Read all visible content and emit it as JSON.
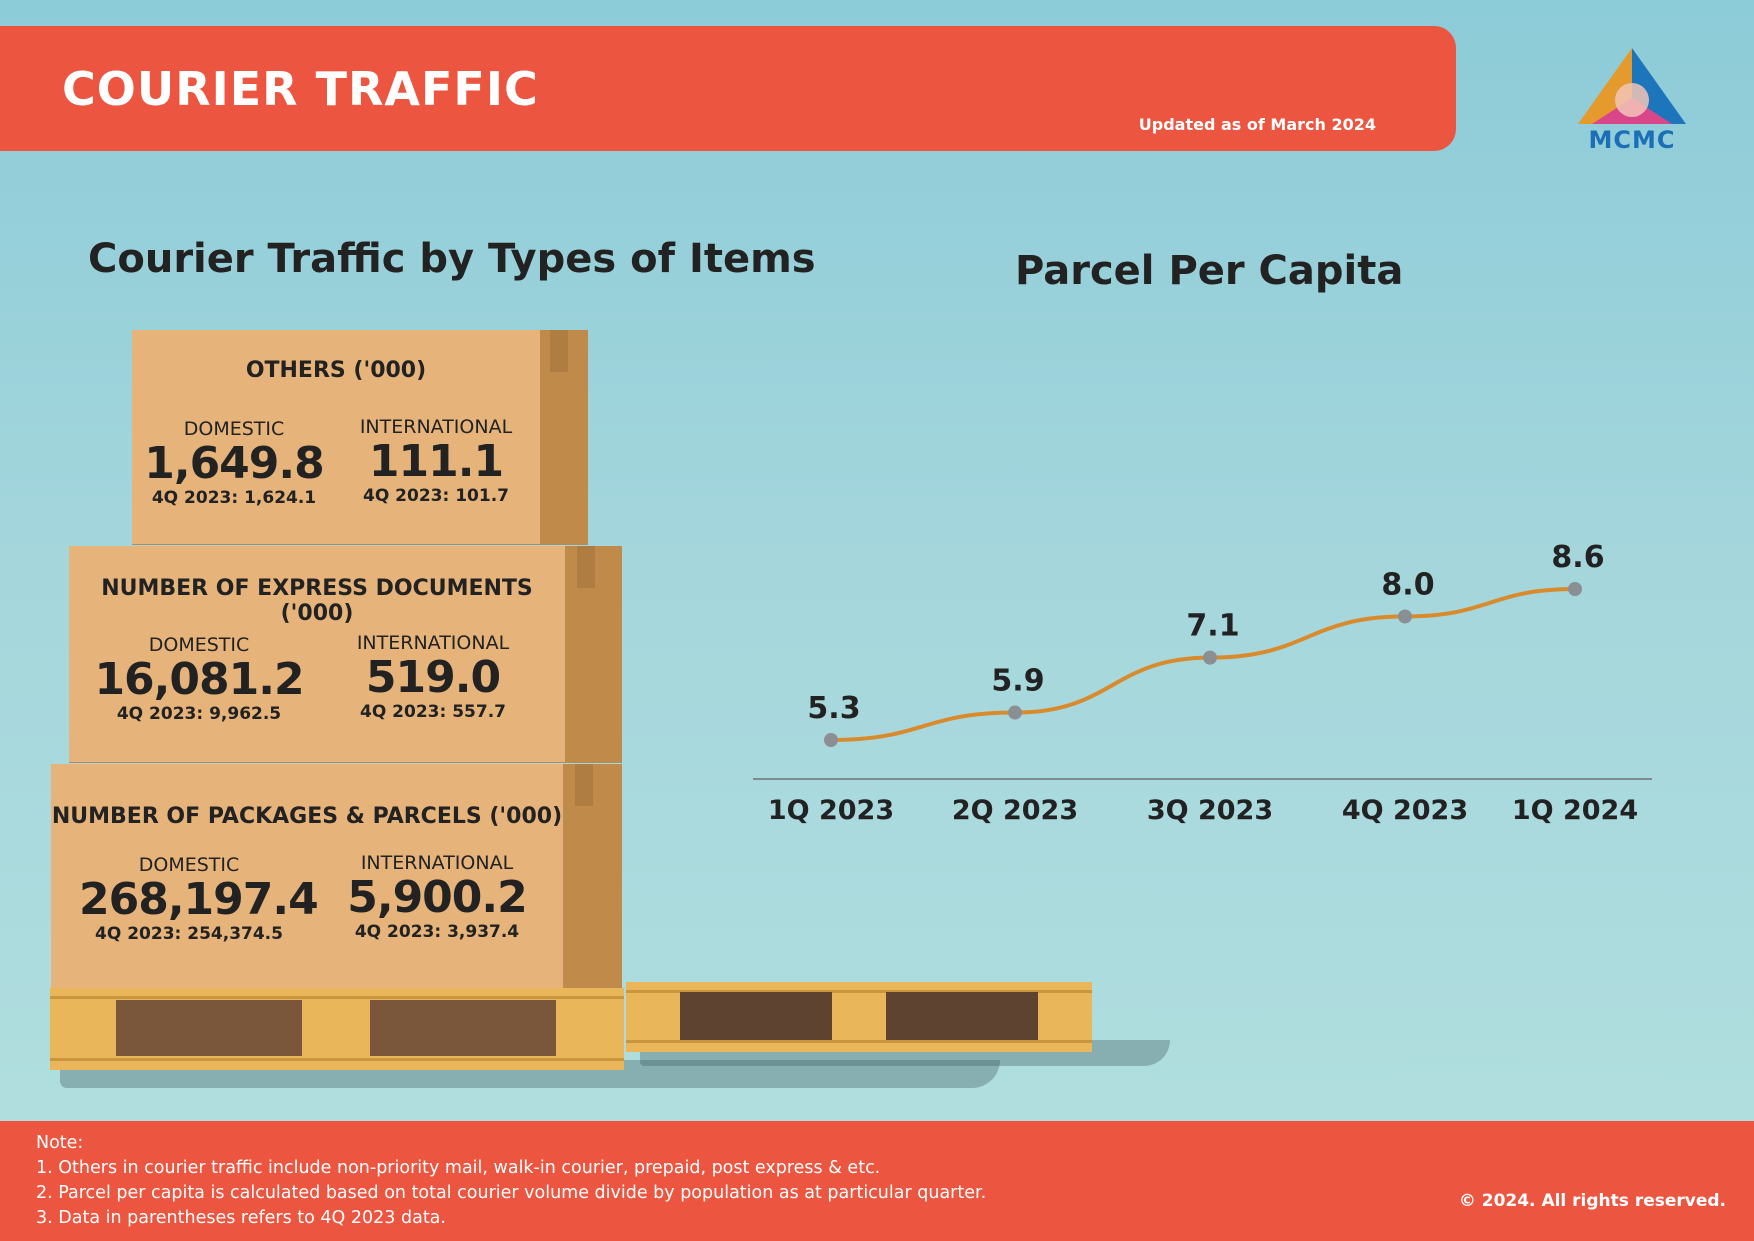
{
  "header": {
    "title": "COURIER TRAFFIC",
    "updated": "Updated as of March 2024",
    "logo_text": "MCMC"
  },
  "left_section": {
    "title": "Courier Traffic by Types of Items",
    "boxes": [
      {
        "title": "OTHERS ('000)",
        "domestic": {
          "label": "DOMESTIC",
          "value": "1,649.8",
          "prev": "4Q 2023: 1,624.1"
        },
        "international": {
          "label": "INTERNATIONAL",
          "value": "111.1",
          "prev": "4Q 2023: 101.7"
        }
      },
      {
        "title": "NUMBER OF EXPRESS DOCUMENTS ('000)",
        "domestic": {
          "label": "DOMESTIC",
          "value": "16,081.2",
          "prev": "4Q 2023: 9,962.5"
        },
        "international": {
          "label": "INTERNATIONAL",
          "value": "519.0",
          "prev": "4Q 2023: 557.7"
        }
      },
      {
        "title": "NUMBER OF PACKAGES & PARCELS ('000)",
        "domestic": {
          "label": "DOMESTIC",
          "value": "268,197.4",
          "prev": "4Q 2023: 254,374.5"
        },
        "international": {
          "label": "INTERNATIONAL",
          "value": "5,900.2",
          "prev": "4Q 2023: 3,937.4"
        }
      }
    ]
  },
  "chart_data": {
    "type": "line",
    "title": "Parcel Per Capita",
    "categories": [
      "1Q 2023",
      "2Q 2023",
      "3Q 2023",
      "4Q 2023",
      "1Q 2024"
    ],
    "values": [
      5.3,
      5.9,
      7.1,
      8.0,
      8.6
    ],
    "data_labels": [
      "5.3",
      "5.9",
      "7.1",
      "8.0",
      "8.6"
    ],
    "xlabel": "",
    "ylabel": "",
    "ylim": [
      0,
      10
    ],
    "grid": false,
    "line_color": "#d98a2b",
    "marker_color": "#8a8f94"
  },
  "footer": {
    "notes": [
      "Note:",
      "1.  Others in courier traffic include non-priority mail, walk-in courier, prepaid, post express & etc.",
      "2. Parcel per capita is calculated based on total courier volume divide by population as at particular quarter.",
      "3. Data in parentheses refers to 4Q 2023 data."
    ],
    "copyright": "© 2024. All rights reserved."
  },
  "colors": {
    "accent": "#ec5540",
    "box": "#e6b47b",
    "box_side": "#bf8a4a",
    "pallet": "#e9b75a"
  }
}
